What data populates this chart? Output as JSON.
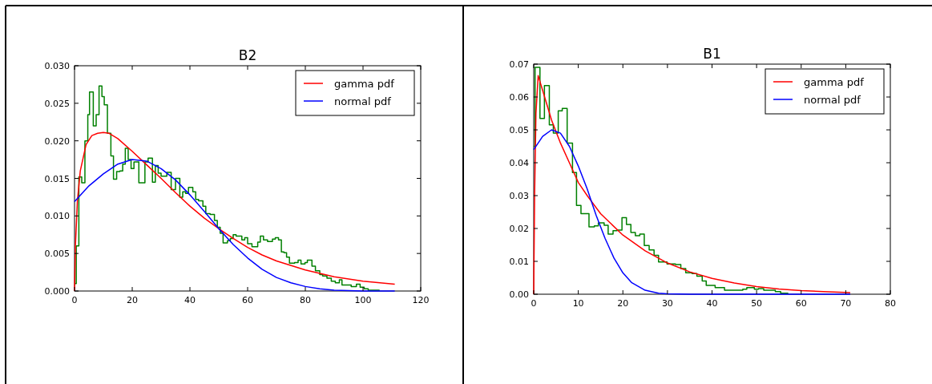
{
  "chart_data": [
    {
      "type": "line",
      "title": "B2",
      "xlim": [
        0,
        120
      ],
      "xticks": [
        0,
        20,
        40,
        60,
        80,
        100,
        120
      ],
      "ylim": [
        0,
        0.03
      ],
      "yticks": [
        {
          "value": 0,
          "label": "0.000"
        },
        {
          "value": 0.005,
          "label": "0.005"
        },
        {
          "value": 0.01,
          "label": "0.010"
        },
        {
          "value": 0.015,
          "label": "0.015"
        },
        {
          "value": 0.02,
          "label": "0.020"
        },
        {
          "value": 0.025,
          "label": "0.025"
        },
        {
          "value": 0.03,
          "label": "0.030"
        }
      ],
      "legend": "top right",
      "grid": false,
      "series": [
        {
          "type": "step",
          "color": "#008000",
          "x": [
            0,
            0.6,
            1.5,
            2.5,
            3.6,
            4.6,
            5.2,
            6.5,
            7.5,
            8.5,
            9.5,
            10.3,
            11.4,
            12.6,
            13.5,
            14.6,
            15.7,
            16.7,
            17.6,
            18.6,
            19.6,
            20.6,
            22.3,
            24.4,
            25.5,
            27,
            28,
            29,
            30,
            32,
            33.5,
            35,
            36.5,
            37.5,
            38.5,
            39.5,
            41,
            42,
            43,
            44.5,
            45.5,
            47,
            48.5,
            49.5,
            50.5,
            51.5,
            53,
            54,
            55,
            56,
            58,
            59,
            60,
            61.5,
            63.5,
            64.4,
            65.5,
            66.9,
            68.6,
            69.6,
            70.7,
            71.7,
            72.6,
            73.5,
            74.5,
            76.3,
            77.5,
            78.5,
            79.9,
            80.7,
            82.3,
            83.5,
            85,
            86,
            87.5,
            89,
            90.4,
            91.8,
            92.7,
            93.6,
            95.9,
            97.7,
            99,
            100.4,
            101.8,
            105.6
          ],
          "values": [
            0.001,
            0.006,
            0.0152,
            0.0144,
            0.02,
            0.0235,
            0.0265,
            0.022,
            0.0235,
            0.0273,
            0.0259,
            0.0248,
            0.021,
            0.018,
            0.0149,
            0.0159,
            0.016,
            0.0169,
            0.019,
            0.0175,
            0.0163,
            0.0172,
            0.0144,
            0.0172,
            0.0177,
            0.0145,
            0.0167,
            0.0157,
            0.0153,
            0.0158,
            0.0135,
            0.015,
            0.0125,
            0.0132,
            0.013,
            0.0138,
            0.0132,
            0.0122,
            0.012,
            0.0113,
            0.0103,
            0.0102,
            0.0094,
            0.0085,
            0.0077,
            0.0064,
            0.0067,
            0.007,
            0.0075,
            0.0073,
            0.0068,
            0.0071,
            0.0063,
            0.0059,
            0.0065,
            0.0073,
            0.0068,
            0.0066,
            0.0069,
            0.0071,
            0.0068,
            0.0052,
            0.0051,
            0.0045,
            0.0037,
            0.0038,
            0.0041,
            0.0036,
            0.0038,
            0.0041,
            0.0033,
            0.0027,
            0.0022,
            0.002,
            0.0017,
            0.0013,
            0.0011,
            0.0015,
            0.0008,
            0.0008,
            0.0006,
            0.0009,
            0.0005,
            0.0003,
            0.0001,
            0
          ]
        },
        {
          "type": "line",
          "name": "gamma pdf",
          "color": "#ff0000",
          "x": [
            0,
            0.3,
            1,
            2,
            4,
            6,
            8,
            10,
            12,
            15,
            20,
            25,
            30,
            35,
            40,
            45,
            50,
            55,
            60,
            65,
            70,
            80,
            90,
            100,
            111
          ],
          "values": [
            0,
            0.006,
            0.012,
            0.016,
            0.0195,
            0.0207,
            0.021,
            0.0211,
            0.021,
            0.0203,
            0.0186,
            0.0168,
            0.015,
            0.0131,
            0.0113,
            0.0097,
            0.0083,
            0.007,
            0.0058,
            0.0048,
            0.004,
            0.0028,
            0.0019,
            0.0013,
            0.0009
          ]
        },
        {
          "type": "line",
          "name": "normal pdf",
          "color": "#0000ff",
          "x": [
            0,
            5,
            10,
            15,
            20,
            25,
            30,
            35,
            40,
            45,
            50,
            55,
            60,
            65,
            70,
            75,
            80,
            85,
            90,
            100,
            111
          ],
          "values": [
            0.0119,
            0.014,
            0.0156,
            0.0169,
            0.0175,
            0.0173,
            0.0163,
            0.0148,
            0.0128,
            0.0106,
            0.0083,
            0.0062,
            0.0044,
            0.0029,
            0.0018,
            0.0011,
            0.0006,
            0.0003,
            0.0001,
            0,
            0
          ]
        }
      ]
    },
    {
      "type": "line",
      "title": "B1",
      "xlim": [
        0,
        80
      ],
      "xticks": [
        0,
        10,
        20,
        30,
        40,
        50,
        60,
        70,
        80
      ],
      "ylim": [
        0,
        0.07
      ],
      "yticks": [
        {
          "value": 0,
          "label": "0.00"
        },
        {
          "value": 0.01,
          "label": "0.01"
        },
        {
          "value": 0.02,
          "label": "0.02"
        },
        {
          "value": 0.03,
          "label": "0.03"
        },
        {
          "value": 0.04,
          "label": "0.04"
        },
        {
          "value": 0.05,
          "label": "0.05"
        },
        {
          "value": 0.06,
          "label": "0.06"
        },
        {
          "value": 0.07,
          "label": "0.07"
        }
      ],
      "legend": "top right",
      "grid": false,
      "series": [
        {
          "type": "step",
          "color": "#008000",
          "x": [
            0,
            0.3,
            1.4,
            2.4,
            3.5,
            4.4,
            5.5,
            6.4,
            7.5,
            8.7,
            9.6,
            10.6,
            12.4,
            13.6,
            14.5,
            15.8,
            16.7,
            17.8,
            18.7,
            19.8,
            20.8,
            21.8,
            22.8,
            23.8,
            24.8,
            25.9,
            27,
            28,
            29.9,
            31.8,
            33,
            34.1,
            35.5,
            36.6,
            37.8,
            38.7,
            40.7,
            42.8,
            46.9,
            47.8,
            49.5,
            50.4,
            51.6,
            54.2,
            55.4,
            57
          ],
          "values": [
            0.045,
            0.069,
            0.0535,
            0.0635,
            0.0515,
            0.049,
            0.0558,
            0.0565,
            0.046,
            0.037,
            0.027,
            0.0245,
            0.0205,
            0.0208,
            0.0217,
            0.021,
            0.0183,
            0.0193,
            0.0195,
            0.0233,
            0.0212,
            0.0188,
            0.0178,
            0.0183,
            0.0148,
            0.0135,
            0.0118,
            0.0098,
            0.0092,
            0.009,
            0.0078,
            0.0065,
            0.0063,
            0.0055,
            0.004,
            0.0027,
            0.002,
            0.0012,
            0.0015,
            0.002,
            0.0015,
            0.0017,
            0.0012,
            0.0008,
            0.0003,
            0
          ]
        },
        {
          "type": "line",
          "name": "gamma pdf",
          "color": "#ff0000",
          "x": [
            0,
            0.2,
            0.5,
            1,
            2,
            4,
            6,
            8,
            10,
            12,
            15,
            20,
            25,
            30,
            35,
            40,
            45,
            50,
            55,
            60,
            65,
            71
          ],
          "values": [
            0,
            0.03,
            0.055,
            0.0665,
            0.062,
            0.053,
            0.046,
            0.04,
            0.034,
            0.03,
            0.0245,
            0.018,
            0.0132,
            0.0095,
            0.0068,
            0.0048,
            0.0034,
            0.0023,
            0.0016,
            0.0011,
            0.0008,
            0.0005
          ]
        },
        {
          "type": "line",
          "name": "normal pdf",
          "color": "#0000ff",
          "x": [
            0,
            2,
            4,
            6,
            8,
            10,
            12,
            14,
            16,
            18,
            20,
            22,
            25,
            28,
            30,
            35,
            40,
            50,
            60,
            71
          ],
          "values": [
            0.044,
            0.048,
            0.05,
            0.049,
            0.045,
            0.039,
            0.032,
            0.024,
            0.017,
            0.011,
            0.0065,
            0.0035,
            0.0012,
            0.0003,
            0.0001,
            0,
            0,
            0,
            0,
            0
          ]
        }
      ]
    }
  ]
}
